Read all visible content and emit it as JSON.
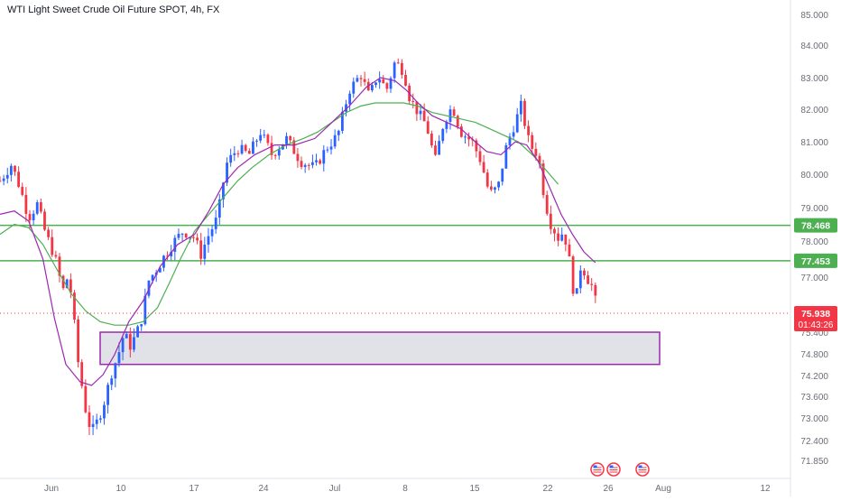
{
  "header": {
    "title": "WTI Light Sweet Crude Oil Future SPOT, 4h, FX"
  },
  "colors": {
    "up": "#2962ff",
    "down": "#f23645",
    "ma_fast": "#9c27b0",
    "ma_slow": "#4caf50",
    "level_line": "#4caf50",
    "zone_border": "#9c27b0",
    "zone_fill": "#dcdde3",
    "price_line": "#f23645",
    "axis_text": "#6a6d78"
  },
  "chart_data": {
    "type": "candlestick",
    "y_range": [
      71.5,
      85.3
    ],
    "y_ticks": [
      "85.000",
      "84.000",
      "83.000",
      "82.000",
      "81.000",
      "80.000",
      "79.000",
      "78.000",
      "77.000",
      "75.400",
      "74.800",
      "74.200",
      "73.600",
      "73.000",
      "72.400",
      "71.850"
    ],
    "x_ticks": [
      "Jun",
      "10",
      "17",
      "24",
      "Jul",
      "8",
      "15",
      "22",
      "26",
      "Aug",
      "12"
    ],
    "levels": [
      {
        "value": 78.468,
        "label": "78.468"
      },
      {
        "value": 77.453,
        "label": "77.453"
      }
    ],
    "zone": {
      "top": 75.4,
      "bottom": 74.6,
      "start_index": 70,
      "end_index": 460
    },
    "current_price": {
      "value": 75.938,
      "label": "75.938",
      "countdown": "01:43:26"
    },
    "event_icons": [
      "us-flag-icon",
      "us-flag-icon",
      "us-flag-icon"
    ],
    "price_path": [
      [
        0,
        79.8
      ],
      [
        8,
        80.3
      ],
      [
        14,
        79.6
      ],
      [
        20,
        78.7
      ],
      [
        26,
        79.1
      ],
      [
        32,
        78.2
      ],
      [
        38,
        77.6
      ],
      [
        44,
        76.6
      ],
      [
        48,
        77.1
      ],
      [
        52,
        75.6
      ],
      [
        56,
        74.2
      ],
      [
        60,
        73.2
      ],
      [
        64,
        72.6
      ],
      [
        68,
        72.9
      ],
      [
        74,
        73.6
      ],
      [
        80,
        74.6
      ],
      [
        86,
        75.3
      ],
      [
        92,
        75.1
      ],
      [
        98,
        75.6
      ],
      [
        104,
        76.9
      ],
      [
        112,
        77.4
      ],
      [
        120,
        77.9
      ],
      [
        128,
        78.3
      ],
      [
        136,
        78.1
      ],
      [
        140,
        77.6
      ],
      [
        146,
        78.2
      ],
      [
        152,
        78.7
      ],
      [
        158,
        80.3
      ],
      [
        166,
        80.8
      ],
      [
        174,
        80.6
      ],
      [
        182,
        81.3
      ],
      [
        190,
        80.6
      ],
      [
        200,
        81.1
      ],
      [
        210,
        80.4
      ],
      [
        220,
        80.2
      ],
      [
        228,
        80.8
      ],
      [
        236,
        81.2
      ],
      [
        244,
        82.6
      ],
      [
        252,
        83.1
      ],
      [
        258,
        82.4
      ],
      [
        264,
        83.1
      ],
      [
        270,
        82.6
      ],
      [
        276,
        83.5
      ],
      [
        282,
        83.2
      ],
      [
        286,
        82.4
      ],
      [
        292,
        81.9
      ],
      [
        298,
        81.5
      ],
      [
        304,
        80.4
      ],
      [
        310,
        81.6
      ],
      [
        316,
        82.1
      ],
      [
        322,
        81.3
      ],
      [
        330,
        81.0
      ],
      [
        336,
        80.4
      ],
      [
        342,
        79.4
      ],
      [
        348,
        79.6
      ],
      [
        354,
        80.9
      ],
      [
        360,
        81.6
      ],
      [
        364,
        82.1
      ],
      [
        370,
        80.9
      ],
      [
        376,
        80.6
      ],
      [
        380,
        79.4
      ],
      [
        384,
        78.6
      ],
      [
        390,
        78.1
      ],
      [
        394,
        78.3
      ],
      [
        398,
        77.4
      ],
      [
        402,
        76.2
      ],
      [
        406,
        77.4
      ],
      [
        410,
        77.0
      ],
      [
        414,
        76.7
      ],
      [
        418,
        75.9
      ]
    ],
    "ma_fast": [
      [
        0,
        78.8
      ],
      [
        10,
        78.9
      ],
      [
        20,
        78.6
      ],
      [
        30,
        77.5
      ],
      [
        38,
        75.8
      ],
      [
        46,
        74.6
      ],
      [
        56,
        74.0
      ],
      [
        64,
        73.9
      ],
      [
        72,
        74.2
      ],
      [
        80,
        74.9
      ],
      [
        90,
        75.7
      ],
      [
        100,
        76.3
      ],
      [
        112,
        77.3
      ],
      [
        124,
        77.9
      ],
      [
        136,
        78.2
      ],
      [
        146,
        78.9
      ],
      [
        156,
        79.7
      ],
      [
        166,
        80.2
      ],
      [
        178,
        80.6
      ],
      [
        192,
        80.9
      ],
      [
        206,
        80.9
      ],
      [
        220,
        81.1
      ],
      [
        232,
        81.6
      ],
      [
        244,
        82.1
      ],
      [
        256,
        82.7
      ],
      [
        266,
        83.0
      ],
      [
        276,
        82.9
      ],
      [
        284,
        82.6
      ],
      [
        292,
        82.2
      ],
      [
        302,
        81.8
      ],
      [
        312,
        81.6
      ],
      [
        322,
        81.4
      ],
      [
        332,
        81.0
      ],
      [
        340,
        80.7
      ],
      [
        350,
        80.6
      ],
      [
        360,
        81.0
      ],
      [
        368,
        80.9
      ],
      [
        376,
        80.4
      ],
      [
        384,
        79.6
      ],
      [
        392,
        78.8
      ],
      [
        400,
        78.2
      ],
      [
        408,
        77.7
      ],
      [
        416,
        77.4
      ]
    ],
    "ma_slow": [
      [
        0,
        78.2
      ],
      [
        10,
        78.5
      ],
      [
        20,
        78.4
      ],
      [
        30,
        77.9
      ],
      [
        40,
        77.2
      ],
      [
        50,
        76.5
      ],
      [
        60,
        76.0
      ],
      [
        70,
        75.7
      ],
      [
        80,
        75.6
      ],
      [
        90,
        75.6
      ],
      [
        100,
        75.7
      ],
      [
        110,
        76.1
      ],
      [
        118,
        76.8
      ],
      [
        126,
        77.5
      ],
      [
        136,
        78.3
      ],
      [
        146,
        78.8
      ],
      [
        156,
        79.3
      ],
      [
        166,
        79.8
      ],
      [
        176,
        80.2
      ],
      [
        188,
        80.6
      ],
      [
        200,
        80.9
      ],
      [
        212,
        81.1
      ],
      [
        222,
        81.3
      ],
      [
        232,
        81.6
      ],
      [
        242,
        81.9
      ],
      [
        252,
        82.1
      ],
      [
        262,
        82.2
      ],
      [
        272,
        82.2
      ],
      [
        282,
        82.2
      ],
      [
        292,
        82.1
      ],
      [
        302,
        81.9
      ],
      [
        312,
        81.8
      ],
      [
        322,
        81.7
      ],
      [
        332,
        81.6
      ],
      [
        342,
        81.4
      ],
      [
        352,
        81.2
      ],
      [
        362,
        81.0
      ],
      [
        372,
        80.6
      ],
      [
        382,
        80.1
      ],
      [
        390,
        79.7
      ]
    ]
  }
}
